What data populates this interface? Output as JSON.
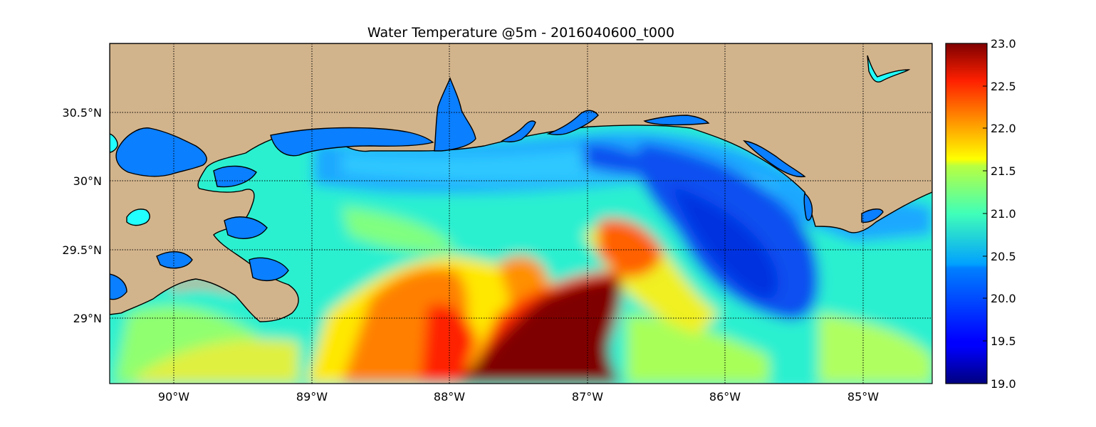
{
  "title": "Water Temperature @5m - 2016040600_t000",
  "x_ticks": [
    "90°W",
    "89°W",
    "88°W",
    "87°W",
    "86°W",
    "85°W"
  ],
  "y_ticks": [
    "30.5°N",
    "30°N",
    "29.5°N",
    "29°N"
  ],
  "colorbar": {
    "ticks": [
      "23.0",
      "22.5",
      "22.0",
      "21.5",
      "21.0",
      "20.5",
      "20.0",
      "19.5",
      "19.0"
    ],
    "min": 19.0,
    "max": 23.0,
    "colormap": "jet"
  },
  "colors": {
    "land": "#d2b48c",
    "inland_water": "#0a7fff",
    "lake_highlight": "#22ffff",
    "grid": "#000000"
  },
  "chart_data": {
    "type": "heatmap",
    "title": "Water Temperature @5m - 2016040600_t000",
    "xlabel": "",
    "ylabel": "",
    "x_ticks": [
      -90,
      -89,
      -88,
      -87,
      -86,
      -85
    ],
    "y_ticks": [
      30.5,
      30.0,
      29.5,
      29.0
    ],
    "xlim": [
      -90.47,
      -84.5
    ],
    "ylim": [
      28.54,
      31.0
    ],
    "grid": true,
    "colorbar_range": [
      19.0,
      23.0
    ],
    "colorbar_ticks": [
      19.0,
      19.5,
      20.0,
      20.5,
      21.0,
      21.5,
      22.0,
      22.5,
      23.0
    ],
    "features": [
      {
        "name": "warm-plume",
        "center": [
          -87.0,
          28.8
        ],
        "value": 23.0
      },
      {
        "name": "cool-eddy-east",
        "center": [
          -85.9,
          29.7
        ],
        "value": 19.8
      },
      {
        "name": "shelf-coastal",
        "center": [
          -87.5,
          30.05
        ],
        "value": 20.3
      }
    ]
  }
}
